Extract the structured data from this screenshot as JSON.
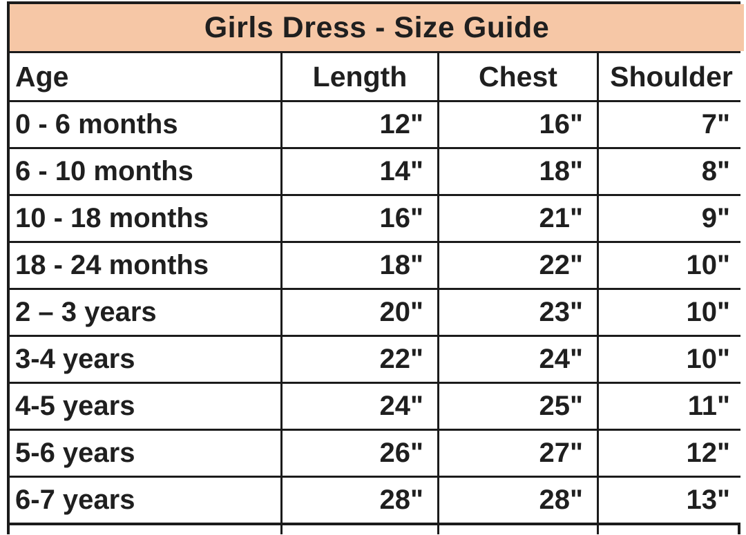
{
  "title": "Girls Dress - Size Guide",
  "columns": [
    "Age",
    "Length",
    "Chest",
    "Shoulder"
  ],
  "rows": [
    {
      "age": "0 - 6 months",
      "length": "12\"",
      "chest": "16\"",
      "shoulder": "7\""
    },
    {
      "age": "6 - 10 months",
      "length": "14\"",
      "chest": "18\"",
      "shoulder": "8\""
    },
    {
      "age": "10 - 18 months",
      "length": "16\"",
      "chest": "21\"",
      "shoulder": "9\""
    },
    {
      "age": "18 - 24 months",
      "length": "18\"",
      "chest": "22\"",
      "shoulder": "10\""
    },
    {
      "age": "2 – 3 years",
      "length": "20\"",
      "chest": "23\"",
      "shoulder": "10\""
    },
    {
      "age": "3-4 years",
      "length": "22\"",
      "chest": "24\"",
      "shoulder": "10\""
    },
    {
      "age": "4-5 years",
      "length": "24\"",
      "chest": "25\"",
      "shoulder": "11\""
    },
    {
      "age": "5-6 years",
      "length": "26\"",
      "chest": "27\"",
      "shoulder": "12\""
    },
    {
      "age": "6-7 years",
      "length": "28\"",
      "chest": "28\"",
      "shoulder": "13\""
    }
  ],
  "colors": {
    "title_bg": "#f6c7a6",
    "border": "#1b1b1b",
    "text": "#1f1f1f",
    "cell_bg": "#ffffff"
  },
  "chart_data": {
    "type": "table",
    "title": "Girls Dress - Size Guide",
    "columns": [
      "Age",
      "Length",
      "Chest",
      "Shoulder"
    ],
    "rows": [
      [
        "0 - 6 months",
        "12\"",
        "16\"",
        "7\""
      ],
      [
        "6 - 10 months",
        "14\"",
        "18\"",
        "8\""
      ],
      [
        "10 - 18 months",
        "16\"",
        "21\"",
        "9\""
      ],
      [
        "18 - 24 months",
        "18\"",
        "22\"",
        "10\""
      ],
      [
        "2 – 3 years",
        "20\"",
        "23\"",
        "10\""
      ],
      [
        "3-4 years",
        "22\"",
        "24\"",
        "10\""
      ],
      [
        "4-5 years",
        "24\"",
        "25\"",
        "11\""
      ],
      [
        "5-6 years",
        "26\"",
        "27\"",
        "12\""
      ],
      [
        "6-7 years",
        "28\"",
        "28\"",
        "13\""
      ]
    ],
    "length_values_in": [
      12,
      14,
      16,
      18,
      20,
      22,
      24,
      26,
      28
    ],
    "chest_values_in": [
      16,
      18,
      21,
      22,
      23,
      24,
      25,
      27,
      28
    ],
    "shoulder_values_in": [
      7,
      8,
      9,
      10,
      10,
      10,
      11,
      12,
      13
    ]
  }
}
